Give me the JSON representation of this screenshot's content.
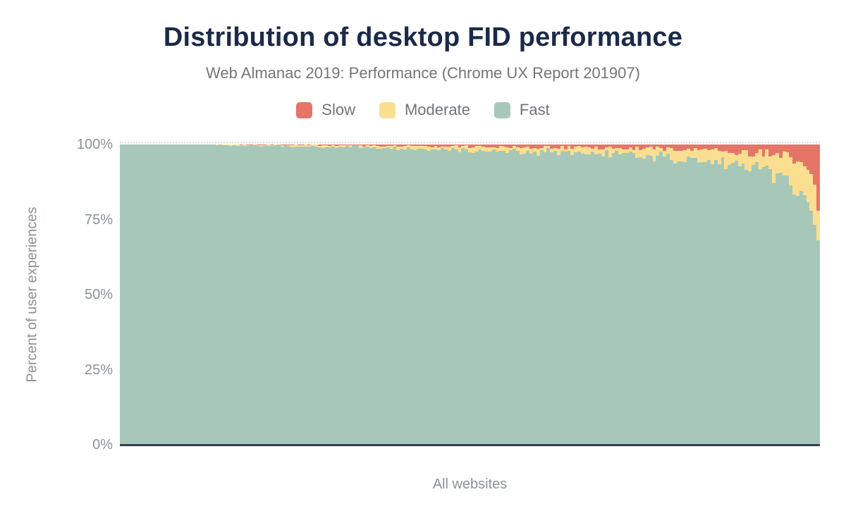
{
  "chart": {
    "title": "Distribution of desktop FID performance",
    "subtitle": "Web Almanac 2019: Performance (Chrome UX Report 201907)",
    "x_axis_label": "All websites",
    "y_axis_label": "Percent of user experiences",
    "y_ticks": [
      "100%",
      "75%",
      "50%",
      "25%",
      "0%"
    ]
  },
  "colors": {
    "title_navy": "#1b2a49",
    "axis_line_navy": "#323e54",
    "label_gray": "#8b9196",
    "subtitle_gray": "#757575",
    "background": "#ffffff"
  },
  "chart_data": {
    "type": "bar",
    "stacked": true,
    "title": "Distribution of desktop FID performance",
    "subtitle": "Web Almanac 2019: Performance (Chrome UX Report 201907)",
    "xlabel": "All websites",
    "ylabel": "Percent of user experiences",
    "ylim": [
      0,
      100
    ],
    "y_tick_values": [
      0,
      25,
      50,
      75,
      100
    ],
    "grid": "dotted line at 100% only",
    "legend_position": "top-center",
    "legend": [
      {
        "name": "Slow",
        "color": "#e57667"
      },
      {
        "name": "Moderate",
        "color": "#fbdf90"
      },
      {
        "name": "Fast",
        "color": "#a7c8b9"
      }
    ],
    "stack_order_bottom_to_top": [
      "Fast",
      "Moderate",
      "Slow"
    ],
    "x_meaning": "websites sorted by descending fast FID share, left to right",
    "bar_count": 205,
    "jitter": {
      "seed": 7,
      "note": "thin jagged bands; sparse specks of Slow/Moderate on left quarter"
    },
    "samples": [
      {
        "p": 0,
        "slow": 0,
        "moderate": 0,
        "fast": 100
      },
      {
        "p": 10,
        "slow": 0,
        "moderate": 0,
        "fast": 100
      },
      {
        "p": 13,
        "slow": 0.15,
        "moderate": 0.2,
        "fast": 99.65
      },
      {
        "p": 20,
        "slow": 0.25,
        "moderate": 0.35,
        "fast": 99.4
      },
      {
        "p": 28,
        "slow": 0.35,
        "moderate": 0.5,
        "fast": 99.15
      },
      {
        "p": 35,
        "slow": 0.5,
        "moderate": 0.7,
        "fast": 98.8
      },
      {
        "p": 45,
        "slow": 0.7,
        "moderate": 0.9,
        "fast": 98.4
      },
      {
        "p": 55,
        "slow": 0.9,
        "moderate": 1.2,
        "fast": 97.9
      },
      {
        "p": 65,
        "slow": 1.1,
        "moderate": 1.7,
        "fast": 97.2
      },
      {
        "p": 72,
        "slow": 1.25,
        "moderate": 2.1,
        "fast": 96.65
      },
      {
        "p": 80,
        "slow": 1.6,
        "moderate": 2.7,
        "fast": 95.7
      },
      {
        "p": 85,
        "slow": 2,
        "moderate": 3.2,
        "fast": 94.8
      },
      {
        "p": 90,
        "slow": 2.6,
        "moderate": 4.2,
        "fast": 93.2
      },
      {
        "p": 93,
        "slow": 3.2,
        "moderate": 5.1,
        "fast": 91.7
      },
      {
        "p": 95,
        "slow": 3.8,
        "moderate": 6,
        "fast": 90.2
      },
      {
        "p": 96.5,
        "slow": 4.6,
        "moderate": 7,
        "fast": 88.4
      },
      {
        "p": 97.5,
        "slow": 5.5,
        "moderate": 8,
        "fast": 86.5
      },
      {
        "p": 98.3,
        "slow": 6.6,
        "moderate": 9,
        "fast": 84.4
      },
      {
        "p": 99,
        "slow": 8.5,
        "moderate": 10.5,
        "fast": 81
      },
      {
        "p": 99.5,
        "slow": 11,
        "moderate": 11,
        "fast": 78
      },
      {
        "p": 99.8,
        "slow": 15,
        "moderate": 11,
        "fast": 74
      },
      {
        "p": 100,
        "slow": 22,
        "moderate": 10,
        "fast": 68
      }
    ]
  }
}
